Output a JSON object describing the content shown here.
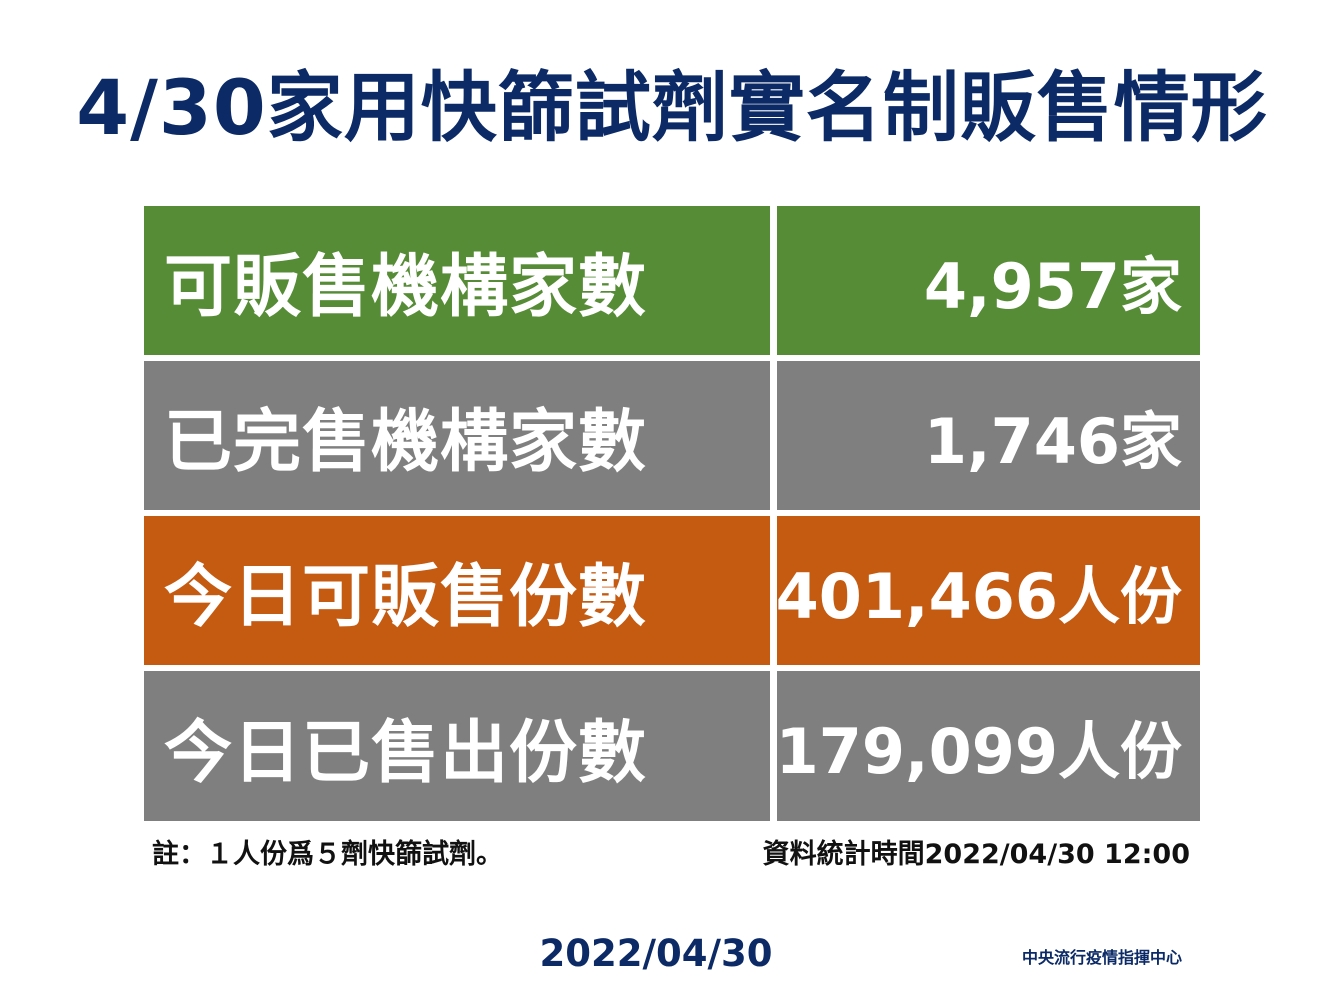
{
  "title": "4/30家用快篩試劑實名制販售情形",
  "rows": [
    {
      "label": "可販售機構家數",
      "value": "4,957家",
      "color": "#568c36"
    },
    {
      "label": "已完售機構家數",
      "value": "1,746家",
      "color": "#7f7f7f"
    },
    {
      "label": "今日可販售份數",
      "value": "401,466人份",
      "color": "#c55a11"
    },
    {
      "label": "今日已售出份數",
      "value": "179,099人份",
      "color": "#7f7f7f"
    }
  ],
  "note": "註：１人份爲５劑快篩試劑。",
  "stats_time": "資料統計時間2022/04/30  12:00",
  "footer": {
    "date": "2022/04/30",
    "organization": "中央流行疫情指揮中心"
  },
  "colors": {
    "title": "#0c2a66",
    "green": "#568c36",
    "gray": "#7f7f7f",
    "orange": "#c55a11"
  }
}
